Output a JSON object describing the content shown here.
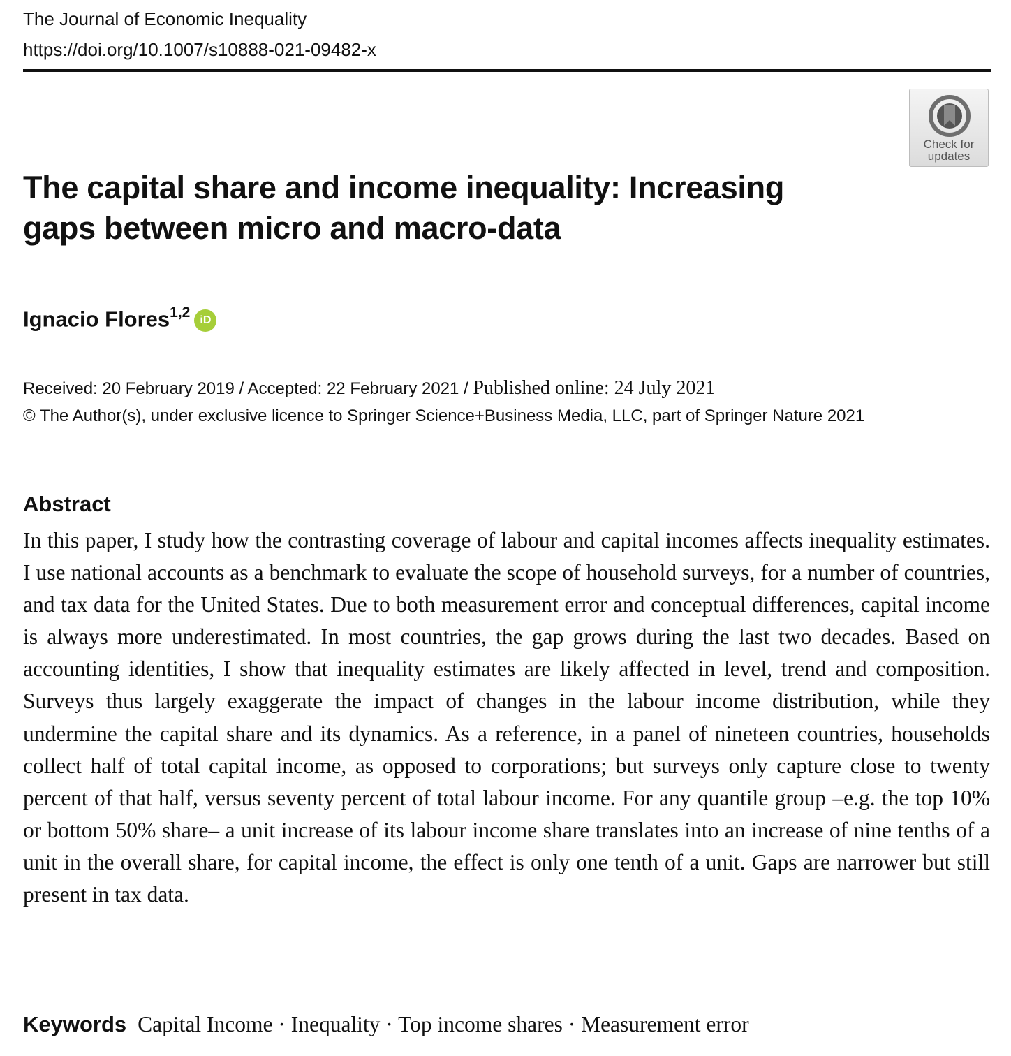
{
  "header": {
    "journal": "The Journal of Economic Inequality",
    "doi": "https://doi.org/10.1007/s10888-021-09482-x"
  },
  "badge": {
    "label": "Check for updates",
    "icon": "crossmark-icon"
  },
  "article": {
    "title": "The capital share and income inequality: Increasing gaps between micro and macro-data",
    "author": {
      "name": "Ignacio Flores",
      "affiliations": "1,2",
      "orcid_icon": "iD"
    },
    "dates": {
      "received": "Received: 20 February 2019",
      "accepted": "Accepted: 22 February 2021",
      "published": "Published online: 24 July 2021",
      "separator": " / "
    },
    "copyright": "© The Author(s), under exclusive licence to Springer Science+Business Media, LLC, part of Springer Nature 2021"
  },
  "abstract": {
    "heading": "Abstract",
    "text": "In this paper, I study how the contrasting coverage of labour and capital incomes affects inequality estimates. I use national accounts as a benchmark to evaluate the scope of house­hold surveys, for a number of countries, and tax data for the United States. Due to both measurement error and conceptual differences, capital income is always more underesti­mated. In most countries, the gap grows during the last two decades. Based on accounting identities, I show that inequality estimates are likely affected in level, trend and composition. Surveys thus largely exaggerate the impact of changes in the labour income distribution, while they undermine the capital share and its dynamics. As a reference, in a panel of nine­teen countries, households collect half of total capital income, as opposed to corporations; but surveys only capture close to twenty percent of that half, versus seventy percent of total labour income. For any quantile group –e.g. the top 10% or bottom 50% share– a unit increase of its labour income share translates into an increase of nine tenths of a unit in the overall share, for capital income, the effect is only one tenth of a unit. Gaps are narrower but still present in tax data."
  },
  "keywords": {
    "label": "Keywords",
    "list": "Capital Income · Inequality · Top income shares · Measurement error"
  }
}
